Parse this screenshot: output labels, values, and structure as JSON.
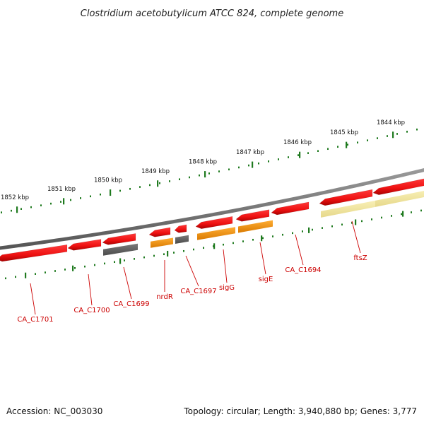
{
  "title": "Clostridium acetobutylicum ATCC 824, complete genome",
  "footer": {
    "accession": "Accession: NC_003030",
    "summary": "Topology: circular; Length: 3,940,880 bp; Genes: 3,777"
  },
  "ticks": [
    {
      "label": "1852 kbp"
    },
    {
      "label": "1851 kbp"
    },
    {
      "label": "1850 kbp"
    },
    {
      "label": "1849 kbp"
    },
    {
      "label": "1848 kbp"
    },
    {
      "label": "1847 kbp"
    },
    {
      "label": "1846 kbp"
    },
    {
      "label": "1845 kbp"
    },
    {
      "label": "1844 kbp"
    }
  ],
  "genes": [
    {
      "label": "CA_C1701"
    },
    {
      "label": "CA_C1700"
    },
    {
      "label": "CA_C1699"
    },
    {
      "label": "nrdR"
    },
    {
      "label": "CA_C1697"
    },
    {
      "label": "sigG"
    },
    {
      "label": "sigE"
    },
    {
      "label": "CA_C1694"
    },
    {
      "label": "ftsZ"
    }
  ],
  "colors": {
    "gene": "#ee1111",
    "gene_dark": "#bb0000",
    "gray_feature": "#666666",
    "orange_feature": "#ff9900",
    "yellow_feature": "#f5e9a0",
    "backbone": "#777777",
    "tick": "#1f7a1f",
    "label": "#cc0000"
  }
}
